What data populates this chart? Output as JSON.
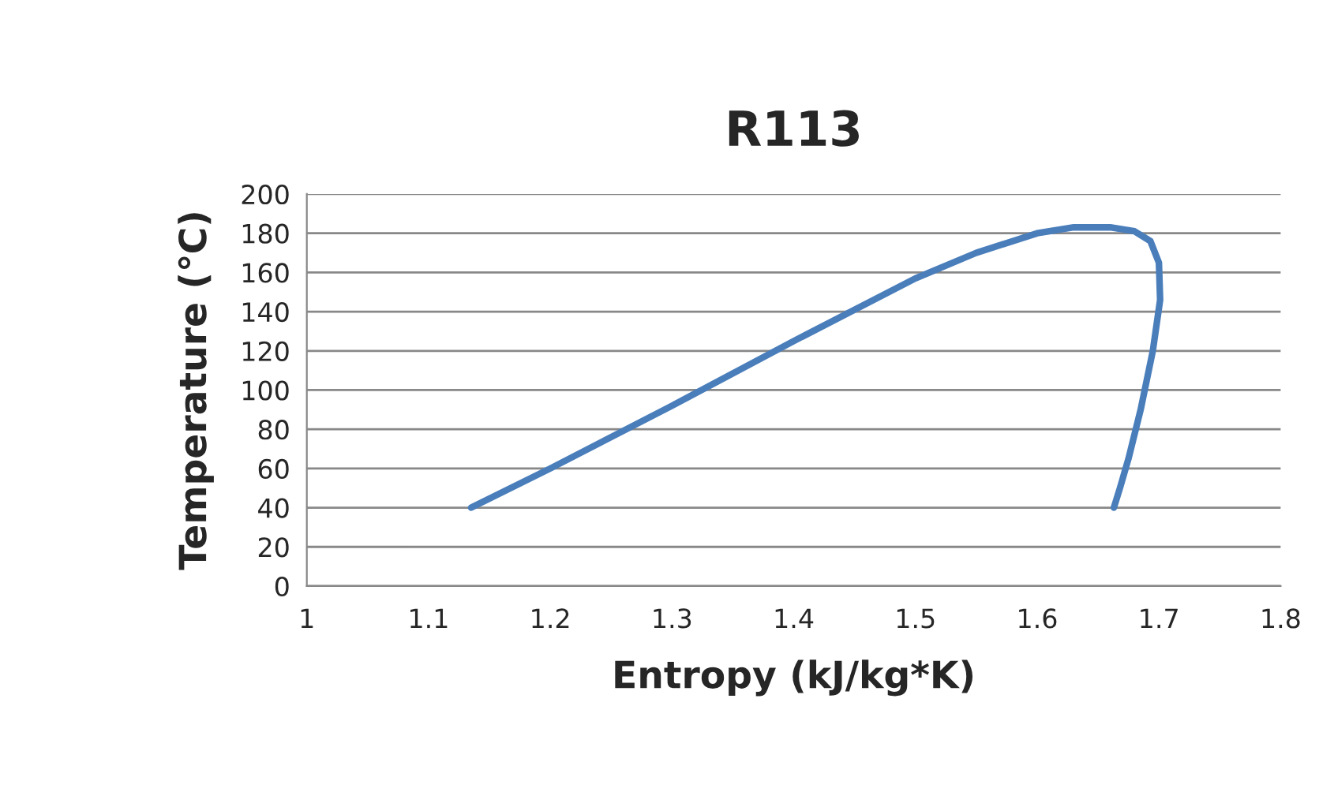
{
  "chart_data": {
    "type": "line",
    "title": "R113",
    "xlabel": "Entropy (kJ/kg*K)",
    "ylabel": "Temperature (℃)",
    "series": [
      {
        "color": "#4a7ebb",
        "x": [
          1.135,
          1.2,
          1.3,
          1.4,
          1.5,
          1.55,
          1.6,
          1.63,
          1.66,
          1.68,
          1.693,
          1.7,
          1.701,
          1.695,
          1.685,
          1.675,
          1.668,
          1.663
        ],
        "values": [
          40,
          60,
          92,
          125,
          157,
          170,
          180,
          183,
          183,
          181,
          176,
          165,
          146,
          120,
          90,
          65,
          50,
          40
        ]
      }
    ],
    "xlim": [
      1,
      1.8
    ],
    "xticks": [
      1,
      1.1,
      1.2,
      1.3,
      1.4,
      1.5,
      1.6,
      1.7,
      1.8
    ],
    "ylim": [
      0,
      200
    ],
    "yticks": [
      0,
      20,
      40,
      60,
      80,
      100,
      120,
      140,
      160,
      180,
      200
    ],
    "grid": "y",
    "marker": "none",
    "line_style": "solid"
  }
}
